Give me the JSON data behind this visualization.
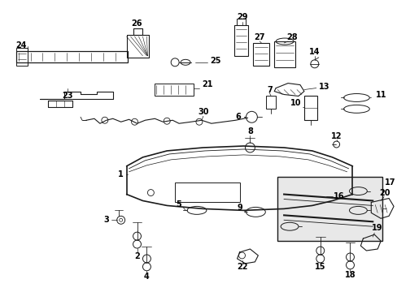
{
  "background_color": "#ffffff",
  "fig_width": 4.89,
  "fig_height": 3.6,
  "dpi": 100,
  "line_color": "#1a1a1a"
}
